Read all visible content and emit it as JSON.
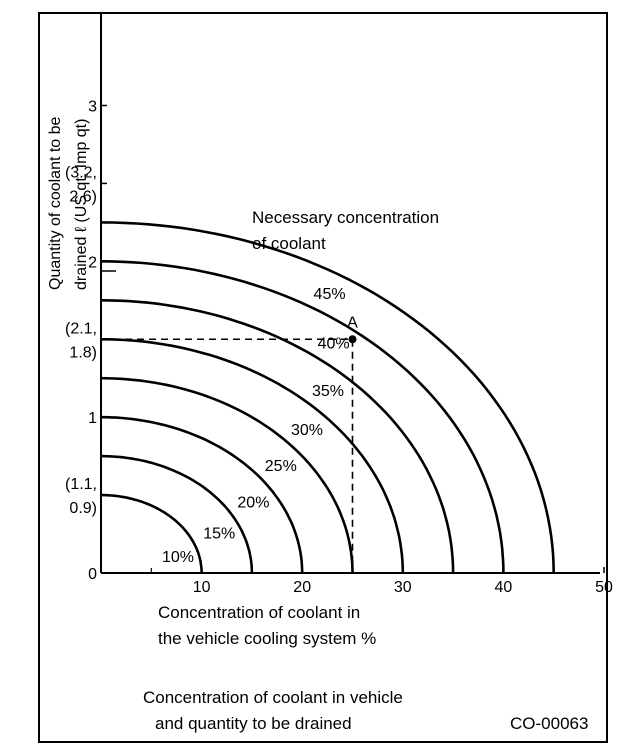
{
  "chart_data": {
    "type": "line",
    "title": "Concentration of coolant in vehicle and quantity to be drained",
    "xlabel": "Concentration of coolant in the vehicle cooling system %",
    "ylabel": "Quantity of coolant to be drained ℓ (US qt, Imp qt)",
    "xlim": [
      0,
      50
    ],
    "ylim": [
      0,
      3.6
    ],
    "x_ticks": [
      "10",
      "20",
      "30",
      "40",
      "50"
    ],
    "y_tick_lines": [
      {
        "value": 0,
        "lines": [
          "0"
        ]
      },
      {
        "value": 0.5,
        "lines": [
          "(1.1,",
          "0.9)"
        ]
      },
      {
        "value": 1,
        "lines": [
          "1"
        ]
      },
      {
        "value": 1.5,
        "lines": [
          "(2.1,",
          "1.8)"
        ]
      },
      {
        "value": 2,
        "lines": [
          "2"
        ]
      },
      {
        "value": 2.5,
        "lines": [
          "(3.2,",
          "2.6)"
        ]
      },
      {
        "value": 3,
        "lines": [
          "3"
        ]
      }
    ],
    "annotation": "Necessary concentration of coolant",
    "annotation_lines": [
      "Necessary concentration",
      "of coolant"
    ],
    "series": [
      {
        "name": "10%",
        "y0": 0.5,
        "x_at_zero": 10
      },
      {
        "name": "15%",
        "y0": 0.75,
        "x_at_zero": 15
      },
      {
        "name": "20%",
        "y0": 1.0,
        "x_at_zero": 20
      },
      {
        "name": "25%",
        "y0": 1.25,
        "x_at_zero": 25
      },
      {
        "name": "30%",
        "y0": 1.5,
        "x_at_zero": 30
      },
      {
        "name": "35%",
        "y0": 1.75,
        "x_at_zero": 35
      },
      {
        "name": "40%",
        "y0": 2.0,
        "x_at_zero": 40
      },
      {
        "name": "45%",
        "y0": 2.25,
        "x_at_zero": 45
      }
    ],
    "point": {
      "label": "A",
      "x": 25,
      "y": 1.5
    }
  },
  "xlabel_lines": [
    "Concentration of coolant in",
    "the vehicle cooling system %"
  ],
  "ylabel_lines": [
    "Quantity of coolant to be",
    "drained ℓ (US qt, Imp qt)"
  ],
  "caption_lines": [
    "Concentration of coolant in vehicle",
    "and quantity to be drained"
  ],
  "figure_code": "CO-00063"
}
